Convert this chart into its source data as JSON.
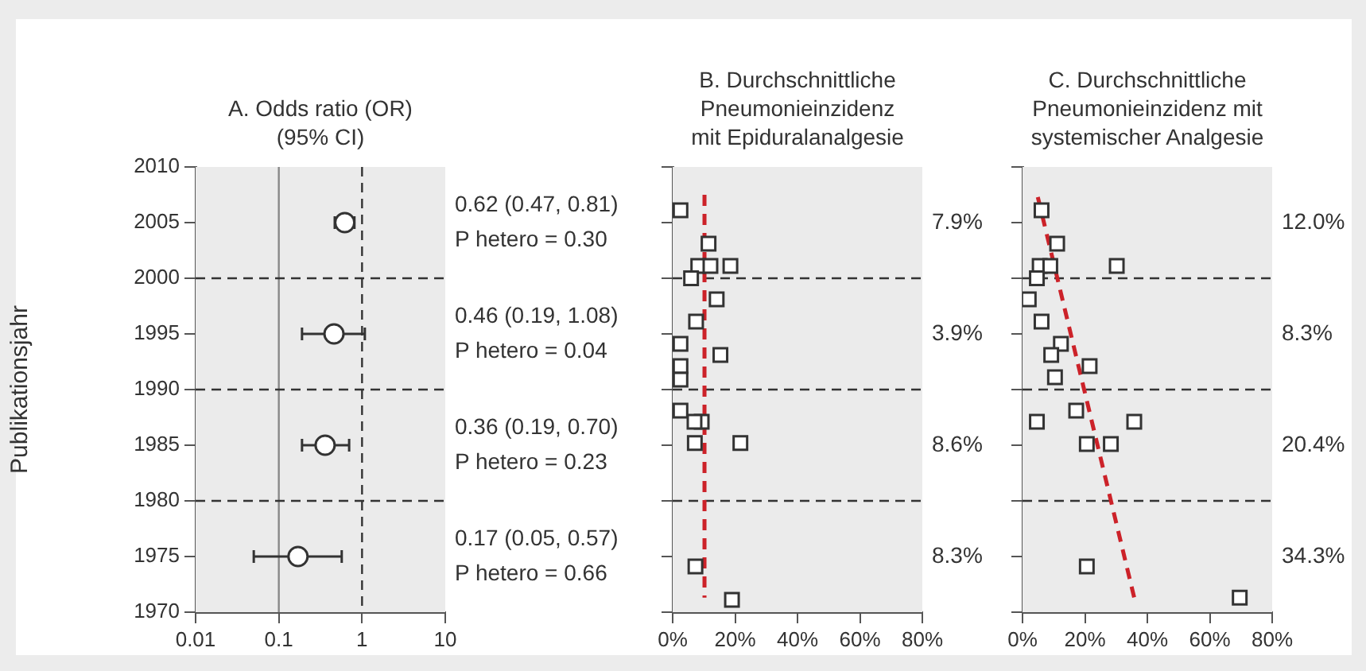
{
  "chart_data": [
    {
      "type": "scatter",
      "title": "A. Odds ratio (OR)\n(95% CI)",
      "ylabel": "Publikationsjahr",
      "log": "x",
      "xlim": [
        0.01,
        10
      ],
      "xticks": [
        0.01,
        0.1,
        1,
        10
      ],
      "ylim": [
        1970,
        2010
      ],
      "yticks": [
        1970,
        1975,
        1980,
        1985,
        1990,
        1995,
        2000,
        2005,
        2010
      ],
      "grid": false,
      "series": [
        {
          "color": "#333333",
          "marker": "circle",
          "x": [
            0.62,
            0.46,
            0.36,
            0.17
          ],
          "values": [
            2005,
            1995,
            1985,
            1975
          ],
          "xerrors": [
            [
              0.47,
              0.81
            ],
            [
              0.19,
              1.08
            ],
            [
              0.19,
              0.7
            ],
            [
              0.05,
              0.57
            ]
          ]
        }
      ],
      "ref_lines": [
        {
          "axis": "x",
          "value": 0.1,
          "color": "#888888",
          "line_style": "solid"
        },
        {
          "axis": "x",
          "value": 1,
          "color": "#333333",
          "line_style": "dashed"
        },
        {
          "axis": "y",
          "value": 2000,
          "color": "#333333",
          "line_style": "dashed"
        },
        {
          "axis": "y",
          "value": 1990,
          "color": "#333333",
          "line_style": "dashed"
        },
        {
          "axis": "y",
          "value": 1980,
          "color": "#333333",
          "line_style": "dashed"
        }
      ],
      "annotations": [
        "0.62 (0.47, 0.81)\nP hetero = 0.30",
        "0.46 (0.19, 1.08)\nP hetero = 0.04",
        "0.36 (0.19, 0.70)\nP hetero = 0.23",
        "0.17 (0.05, 0.57)\nP hetero = 0.66"
      ]
    },
    {
      "type": "scatter",
      "title": "B. Durchschnittliche\nPneumonieinzidenz\nmit Epiduralanalgesie",
      "xlim": [
        0,
        80
      ],
      "xticks": [
        {
          "value": 0,
          "label": "0%"
        },
        {
          "value": 20,
          "label": "20%"
        },
        {
          "value": 40,
          "label": "40%"
        },
        {
          "value": 60,
          "label": "60%"
        },
        {
          "value": 80,
          "label": "80%"
        }
      ],
      "ylim": [
        1970,
        2010
      ],
      "yticks": [
        1970,
        1975,
        1980,
        1985,
        1990,
        1995,
        2000,
        2005,
        2010
      ],
      "tick_labels": "x",
      "grid": false,
      "series": [
        {
          "color": "#333333",
          "marker": "square",
          "x": [
            2.5,
            11.5,
            8.2,
            12.1,
            18.5,
            5.9,
            14.1,
            7.5,
            2.5,
            15.3,
            2.5,
            2.5,
            2.5,
            9.3,
            7.0,
            7.1,
            21.7,
            7.3,
            19.0
          ],
          "values": [
            2006.1,
            2003.1,
            2001.1,
            2001.1,
            2001.1,
            2000.0,
            1998.1,
            1996.1,
            1994.1,
            1993.1,
            1992.1,
            1990.9,
            1988.1,
            1987.1,
            1987.1,
            1985.2,
            1985.2,
            1974.1,
            1971.1
          ]
        },
        {
          "type": "line",
          "color": "#cc2229",
          "marker": "none",
          "line_style": "dashed",
          "x": [
            10.2,
            10.2
          ],
          "values": [
            2007.5,
            1971.3
          ]
        }
      ],
      "ref_lines": [
        {
          "axis": "y",
          "value": 2000,
          "color": "#333333",
          "line_style": "dashed"
        },
        {
          "axis": "y",
          "value": 1990,
          "color": "#333333",
          "line_style": "dashed"
        },
        {
          "axis": "y",
          "value": 1980,
          "color": "#333333",
          "line_style": "dashed"
        }
      ],
      "annotations": [
        "7.9%",
        "3.9%",
        "8.6%",
        "8.3%"
      ]
    },
    {
      "type": "scatter",
      "title": "C. Durchschnittliche\nPneumonieinzidenz mit\nsystemischer Analgesie",
      "xlim": [
        0,
        80
      ],
      "xticks": [
        {
          "value": 0,
          "label": "0%"
        },
        {
          "value": 20,
          "label": "20%"
        },
        {
          "value": 40,
          "label": "40%"
        },
        {
          "value": 60,
          "label": "60%"
        },
        {
          "value": 80,
          "label": "80%"
        }
      ],
      "ylim": [
        1970,
        2010
      ],
      "yticks": [
        1970,
        1975,
        1980,
        1985,
        1990,
        1995,
        2000,
        2005,
        2010
      ],
      "tick_labels": "x",
      "grid": false,
      "series": [
        {
          "color": "#333333",
          "marker": "square",
          "x": [
            6.1,
            11.1,
            5.5,
            8.9,
            30.2,
            4.6,
            2.0,
            6.1,
            12.3,
            9.2,
            21.5,
            10.4,
            17.2,
            4.6,
            35.8,
            20.6,
            28.3,
            20.6,
            69.6
          ],
          "values": [
            2006.1,
            2003.1,
            2001.1,
            2001.1,
            2001.1,
            2000.0,
            1998.1,
            1996.1,
            1994.1,
            1993.1,
            1992.1,
            1991.1,
            1988.1,
            1987.1,
            1987.1,
            1985.1,
            1985.1,
            1974.1,
            1971.3
          ]
        },
        {
          "type": "line",
          "color": "#cc2229",
          "marker": "none",
          "line_style": "dashed",
          "x": [
            4.9,
            35.8
          ],
          "values": [
            2007.3,
            1971.3
          ]
        }
      ],
      "ref_lines": [
        {
          "axis": "y",
          "value": 2000,
          "color": "#333333",
          "line_style": "dashed"
        },
        {
          "axis": "y",
          "value": 1990,
          "color": "#333333",
          "line_style": "dashed"
        },
        {
          "axis": "y",
          "value": 1980,
          "color": "#333333",
          "line_style": "dashed"
        }
      ],
      "annotations": [
        "12.0%",
        "8.3%",
        "20.4%",
        "34.3%"
      ]
    }
  ]
}
